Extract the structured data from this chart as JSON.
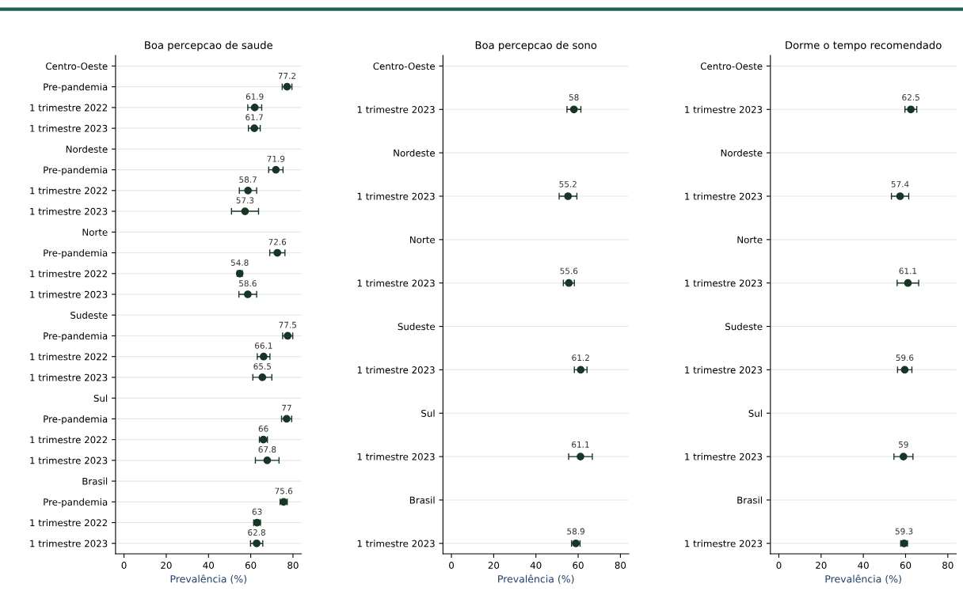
{
  "chart_data": [
    {
      "type": "scatter",
      "title": "Boa percepcao de saude",
      "xlabel": "Prevalência (%)",
      "orientation": "horizontal",
      "categories": [
        "Centro-Oeste",
        "Pre-pandemia",
        "1 trimestre 2022",
        "1 trimestre 2023",
        "Nordeste",
        "Pre-pandemia",
        "1 trimestre 2022",
        "1 trimestre 2023",
        "Norte",
        "Pre-pandemia",
        "1 trimestre 2022",
        "1 trimestre 2023",
        "Sudeste",
        "Pre-pandemia",
        "1 trimestre 2022",
        "1 trimestre 2023",
        "Sul",
        "Pre-pandemia",
        "1 trimestre 2022",
        "1 trimestre 2023",
        "Brasil",
        "Pre-pandemia",
        "1 trimestre 2022",
        "1 trimestre 2023"
      ],
      "series": [
        {
          "color": "#173626",
          "values": [
            null,
            77.2,
            61.9,
            61.7,
            null,
            71.9,
            58.7,
            57.3,
            null,
            72.6,
            54.8,
            58.6,
            null,
            77.5,
            66.1,
            65.5,
            null,
            77,
            66,
            67.8,
            null,
            75.6,
            63,
            62.8
          ],
          "errors": [
            null,
            2.3,
            3.3,
            2.8,
            null,
            3.4,
            4.1,
            6.4,
            null,
            3.6,
            1.2,
            4.2,
            null,
            2.4,
            3.0,
            4.5,
            null,
            2.4,
            1.9,
            5.6,
            null,
            1.7,
            1.6,
            2.9
          ]
        }
      ],
      "xlim": [
        -4,
        84
      ],
      "xticks": [
        0,
        20,
        40,
        60,
        80
      ],
      "grid": "y",
      "marker": "circle",
      "data_labels": true
    },
    {
      "type": "scatter",
      "title": "Boa percepcao de sono",
      "xlabel": "Prevalência (%)",
      "orientation": "horizontal",
      "categories": [
        "Centro-Oeste",
        "1 trimestre 2023",
        "Nordeste",
        "1 trimestre 2023",
        "Norte",
        "1 trimestre 2023",
        "Sudeste",
        "1 trimestre 2023",
        "Sul",
        "1 trimestre 2023",
        "Brasil",
        "1 trimestre 2023"
      ],
      "series": [
        {
          "color": "#173626",
          "values": [
            null,
            58,
            null,
            55.2,
            null,
            55.6,
            null,
            61.2,
            null,
            61.1,
            null,
            58.9
          ],
          "errors": [
            null,
            3.3,
            null,
            4.2,
            null,
            2.6,
            null,
            3.0,
            null,
            5.6,
            null,
            2.0
          ]
        }
      ],
      "xlim": [
        -4,
        84
      ],
      "xticks": [
        0,
        20,
        40,
        60,
        80
      ],
      "grid": "y",
      "marker": "circle",
      "data_labels": true
    },
    {
      "type": "scatter",
      "title": "Dorme o tempo recomendado",
      "xlabel": "Prevalência (%)",
      "orientation": "horizontal",
      "categories": [
        "Centro-Oeste",
        "1 trimestre 2023",
        "Nordeste",
        "1 trimestre 2023",
        "Norte",
        "1 trimestre 2023",
        "Sudeste",
        "1 trimestre 2023",
        "Sul",
        "1 trimestre 2023",
        "Brasil",
        "1 trimestre 2023"
      ],
      "series": [
        {
          "color": "#173626",
          "values": [
            null,
            62.5,
            null,
            57.4,
            null,
            61.1,
            null,
            59.6,
            null,
            59,
            null,
            59.3
          ],
          "errors": [
            null,
            2.8,
            null,
            4.1,
            null,
            5.1,
            null,
            3.4,
            null,
            4.5,
            null,
            1.6
          ]
        }
      ],
      "xlim": [
        -4,
        84
      ],
      "xticks": [
        0,
        20,
        40,
        60,
        80
      ],
      "grid": "y",
      "marker": "circle",
      "data_labels": true
    }
  ]
}
